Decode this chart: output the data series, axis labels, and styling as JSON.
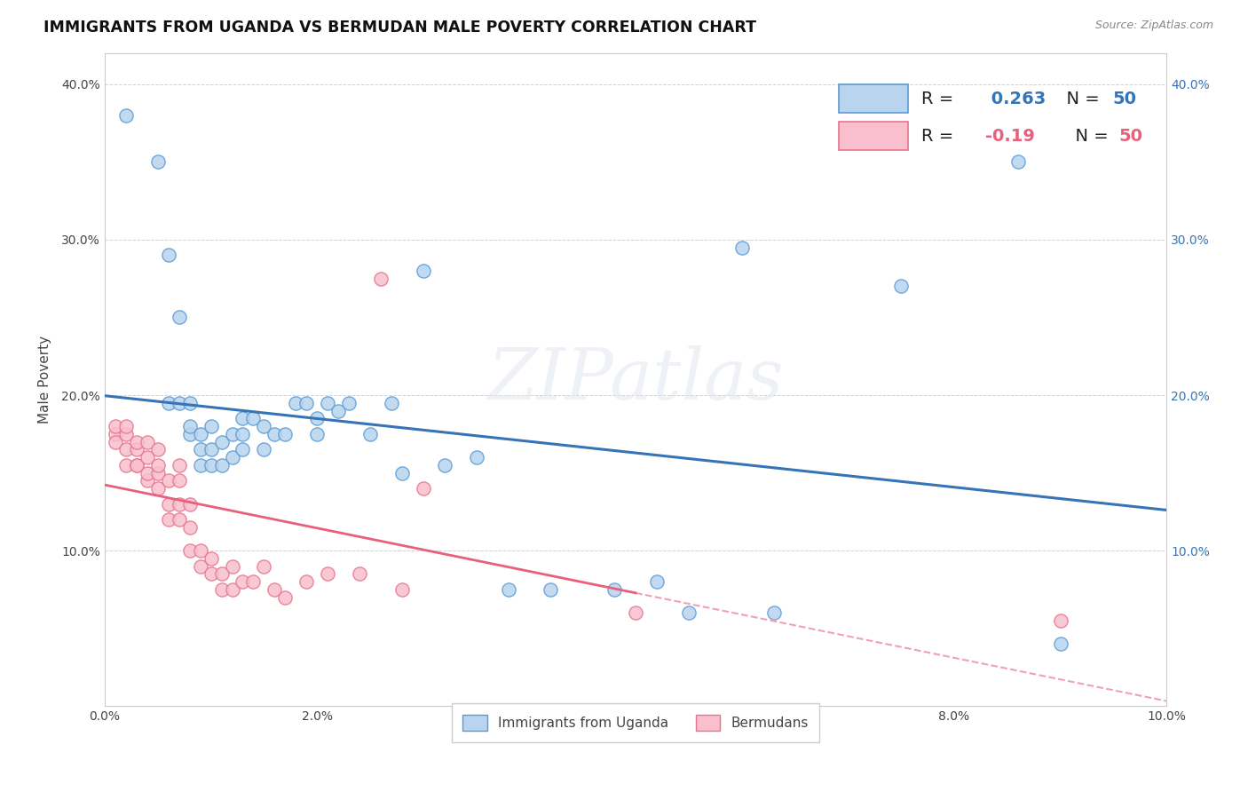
{
  "title": "IMMIGRANTS FROM UGANDA VS BERMUDAN MALE POVERTY CORRELATION CHART",
  "source": "Source: ZipAtlas.com",
  "xlabel": "",
  "ylabel": "Male Poverty",
  "xlim": [
    0.0,
    0.1
  ],
  "ylim": [
    0.0,
    0.42
  ],
  "x_ticks": [
    0.0,
    0.02,
    0.04,
    0.06,
    0.08,
    0.1
  ],
  "y_ticks": [
    0.0,
    0.1,
    0.2,
    0.3,
    0.4
  ],
  "R_uganda": 0.263,
  "N_uganda": 50,
  "R_bermuda": -0.19,
  "N_bermuda": 50,
  "uganda_color": "#b8d4ee",
  "bermuda_color": "#f9bfce",
  "uganda_edge_color": "#5b9bd5",
  "bermuda_edge_color": "#e8748a",
  "uganda_line_color": "#3674b8",
  "bermuda_line_color": "#e8607a",
  "bermuda_dash_color": "#f0a0b8",
  "watermark": "ZIPatlas",
  "legend_label_uganda": "Immigrants from Uganda",
  "legend_label_bermuda": "Bermudans",
  "uganda_x": [
    0.002,
    0.005,
    0.006,
    0.006,
    0.007,
    0.007,
    0.008,
    0.008,
    0.008,
    0.009,
    0.009,
    0.009,
    0.01,
    0.01,
    0.01,
    0.011,
    0.011,
    0.012,
    0.012,
    0.013,
    0.013,
    0.013,
    0.014,
    0.015,
    0.015,
    0.016,
    0.017,
    0.018,
    0.019,
    0.02,
    0.02,
    0.021,
    0.022,
    0.023,
    0.025,
    0.027,
    0.028,
    0.03,
    0.032,
    0.035,
    0.038,
    0.042,
    0.048,
    0.052,
    0.055,
    0.06,
    0.063,
    0.075,
    0.086,
    0.09
  ],
  "uganda_y": [
    0.38,
    0.35,
    0.29,
    0.195,
    0.195,
    0.25,
    0.175,
    0.18,
    0.195,
    0.155,
    0.165,
    0.175,
    0.155,
    0.165,
    0.18,
    0.155,
    0.17,
    0.16,
    0.175,
    0.165,
    0.175,
    0.185,
    0.185,
    0.165,
    0.18,
    0.175,
    0.175,
    0.195,
    0.195,
    0.175,
    0.185,
    0.195,
    0.19,
    0.195,
    0.175,
    0.195,
    0.15,
    0.28,
    0.155,
    0.16,
    0.075,
    0.075,
    0.075,
    0.08,
    0.06,
    0.295,
    0.06,
    0.27,
    0.35,
    0.04
  ],
  "bermuda_x": [
    0.001,
    0.001,
    0.001,
    0.002,
    0.002,
    0.002,
    0.002,
    0.003,
    0.003,
    0.003,
    0.003,
    0.004,
    0.004,
    0.004,
    0.004,
    0.005,
    0.005,
    0.005,
    0.005,
    0.006,
    0.006,
    0.006,
    0.007,
    0.007,
    0.007,
    0.007,
    0.008,
    0.008,
    0.008,
    0.009,
    0.009,
    0.01,
    0.01,
    0.011,
    0.011,
    0.012,
    0.012,
    0.013,
    0.014,
    0.015,
    0.016,
    0.017,
    0.019,
    0.021,
    0.024,
    0.026,
    0.028,
    0.03,
    0.05,
    0.09
  ],
  "bermuda_y": [
    0.175,
    0.17,
    0.18,
    0.155,
    0.165,
    0.175,
    0.18,
    0.155,
    0.165,
    0.155,
    0.17,
    0.145,
    0.15,
    0.16,
    0.17,
    0.14,
    0.15,
    0.155,
    0.165,
    0.12,
    0.13,
    0.145,
    0.12,
    0.13,
    0.145,
    0.155,
    0.1,
    0.115,
    0.13,
    0.09,
    0.1,
    0.085,
    0.095,
    0.075,
    0.085,
    0.075,
    0.09,
    0.08,
    0.08,
    0.09,
    0.075,
    0.07,
    0.08,
    0.085,
    0.085,
    0.275,
    0.075,
    0.14,
    0.06,
    0.055
  ]
}
